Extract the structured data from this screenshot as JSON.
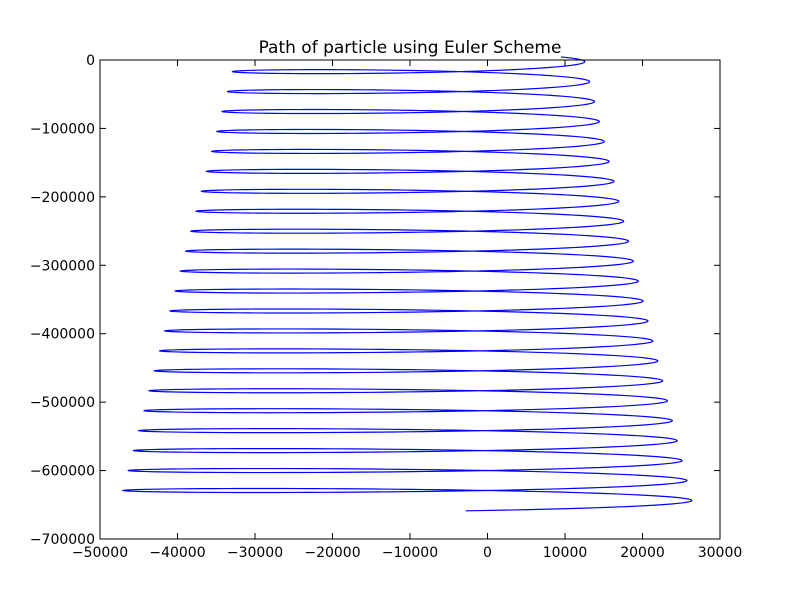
{
  "chart_data": {
    "type": "line",
    "title": "Path of particle using Euler Scheme",
    "xlabel": "",
    "ylabel": "",
    "xlim": [
      -50000,
      30000
    ],
    "ylim": [
      -700000,
      0
    ],
    "x_ticks": [
      -50000,
      -40000,
      -30000,
      -20000,
      -10000,
      0,
      10000,
      20000,
      30000
    ],
    "y_ticks": [
      0,
      -100000,
      -200000,
      -300000,
      -400000,
      -500000,
      -600000,
      -700000
    ],
    "x_tick_labels": [
      "−50000",
      "−40000",
      "−30000",
      "−20000",
      "−10000",
      "0",
      "10000",
      "20000",
      "30000"
    ],
    "y_tick_labels": [
      "0",
      "−100000",
      "−200000",
      "−300000",
      "−400000",
      "−500000",
      "−600000",
      "−700000"
    ],
    "grid": false,
    "line_color": "#0000ff",
    "path": {
      "start": [
        5000,
        0
      ],
      "end": [
        -10500,
        -650000
      ],
      "loops": 22,
      "left_extreme_top": [
        -32500,
        -27000
      ],
      "left_extreme_bottom": [
        -47500,
        -644000
      ],
      "right_extreme_top": [
        12500,
        -11000
      ],
      "right_extreme_bottom": [
        26500,
        -629000
      ]
    }
  }
}
